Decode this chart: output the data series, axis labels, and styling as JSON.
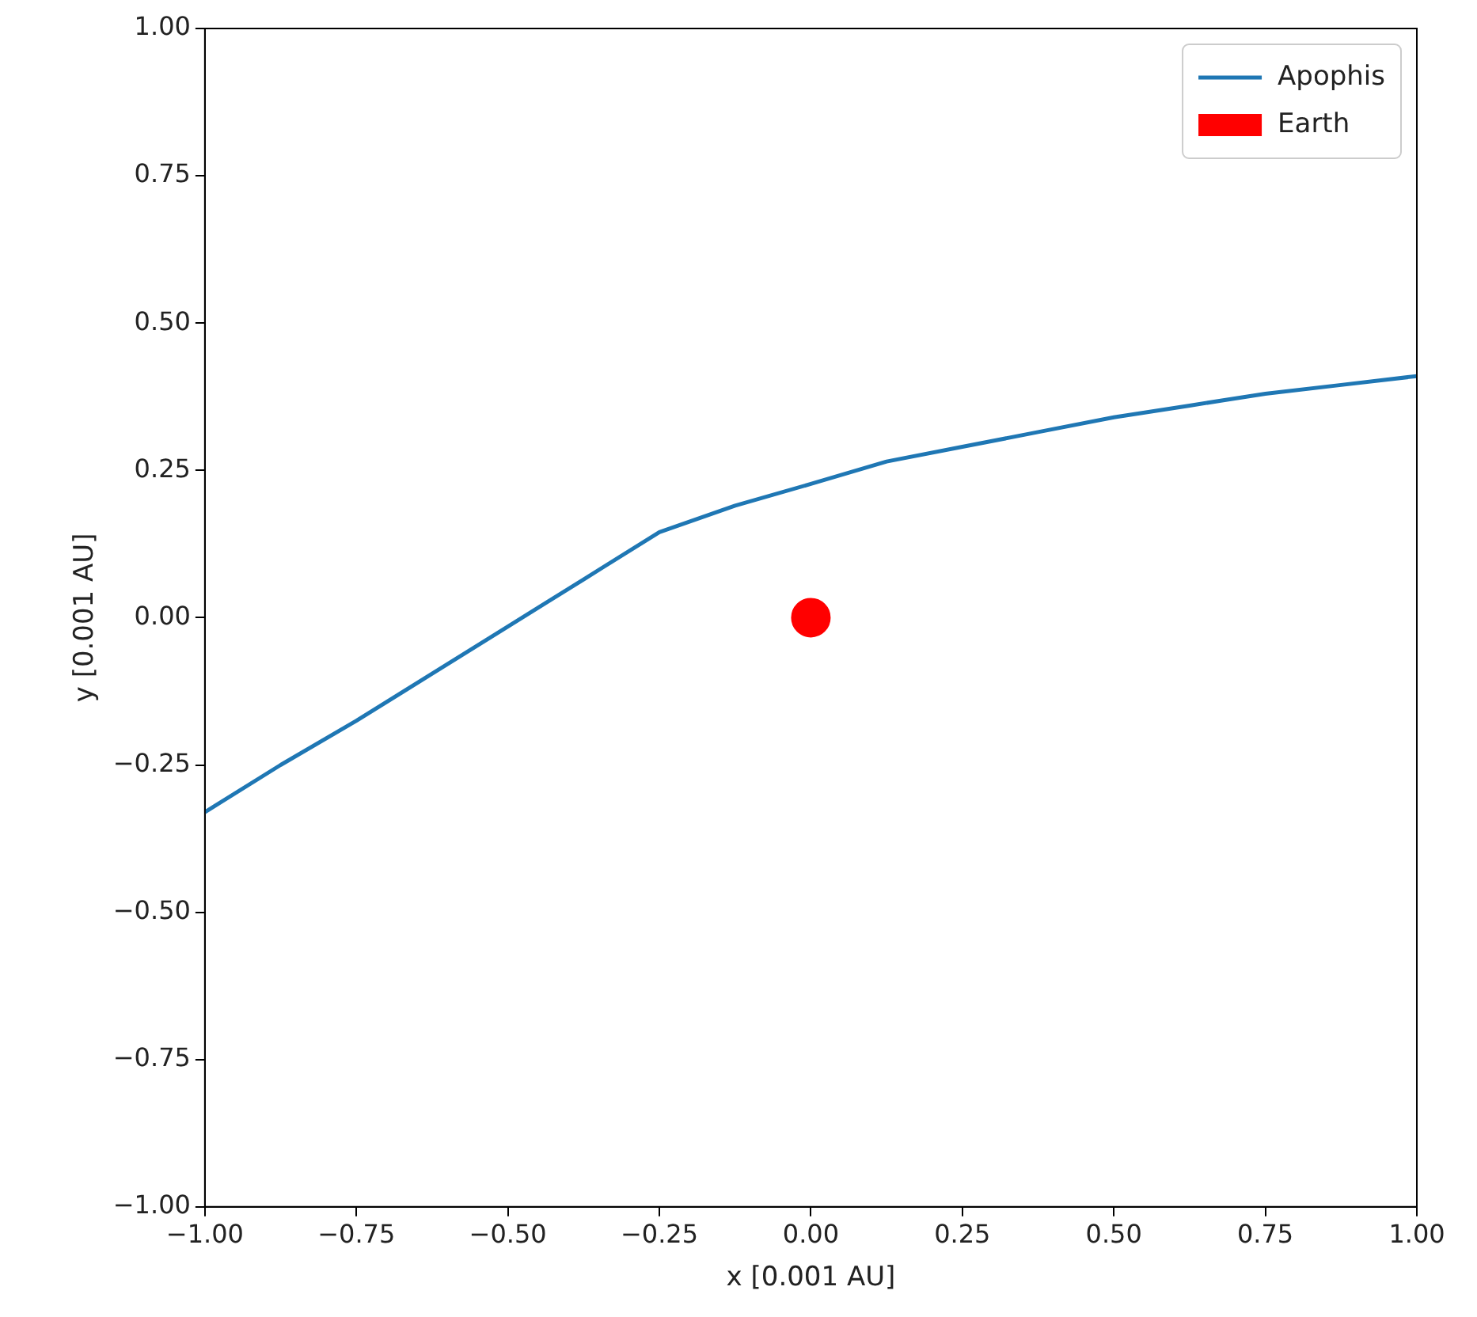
{
  "chart_data": {
    "type": "line",
    "xlabel": "x [0.001 AU]",
    "ylabel": "y [0.001 AU]",
    "xlim": [
      -1,
      1
    ],
    "ylim": [
      -1,
      1
    ],
    "xticks": [
      {
        "value": -1,
        "label": "−1.00"
      },
      {
        "value": -0.75,
        "label": "−0.75"
      },
      {
        "value": -0.5,
        "label": "−0.50"
      },
      {
        "value": -0.25,
        "label": "−0.25"
      },
      {
        "value": 0,
        "label": "0.00"
      },
      {
        "value": 0.25,
        "label": "0.25"
      },
      {
        "value": 0.5,
        "label": "0.50"
      },
      {
        "value": 0.75,
        "label": "0.75"
      },
      {
        "value": 1,
        "label": "1.00"
      }
    ],
    "yticks": [
      {
        "value": -1,
        "label": "−1.00"
      },
      {
        "value": -0.75,
        "label": "−0.75"
      },
      {
        "value": -0.5,
        "label": "−0.50"
      },
      {
        "value": -0.25,
        "label": "−0.25"
      },
      {
        "value": 0,
        "label": "0.00"
      },
      {
        "value": 0.25,
        "label": "0.25"
      },
      {
        "value": 0.5,
        "label": "0.50"
      },
      {
        "value": 0.75,
        "label": "0.75"
      },
      {
        "value": 1,
        "label": "1.00"
      }
    ],
    "grid": false,
    "legend": "top right",
    "series": [
      {
        "name": "Apophis",
        "color": "#1f77b4",
        "marker": "none",
        "x": [
          -1,
          -0.875,
          -0.75,
          -0.625,
          -0.5,
          -0.375,
          -0.25,
          -0.125,
          0,
          0.125,
          0.25,
          0.375,
          0.5,
          0.625,
          0.75,
          0.875,
          1
        ],
        "values": [
          -0.33,
          -0.25,
          -0.175,
          -0.095,
          -0.015,
          0.065,
          0.145,
          0.19,
          0.227,
          0.265,
          0.29,
          0.315,
          0.34,
          0.36,
          0.38,
          0.395,
          0.41
        ]
      },
      {
        "name": "Earth",
        "type": "scatter",
        "color": "#ff0000",
        "marker": "circle",
        "x": [
          0
        ],
        "values": [
          0
        ]
      }
    ]
  }
}
